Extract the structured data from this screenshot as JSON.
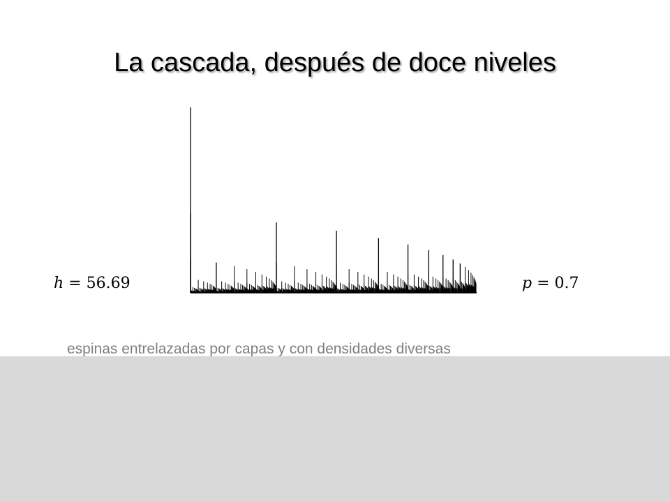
{
  "slide": {
    "title": "La cascada, después de doce niveles",
    "subtitle": "espinas entrelazadas por capas y con densidades diversas"
  },
  "formula_h": {
    "var": "h",
    "eq": " = ",
    "value": "56.69"
  },
  "formula_p": {
    "var": "p",
    "eq": " = ",
    "value": "0.7"
  },
  "cascade": {
    "levels": 12,
    "p": 0.7,
    "h": 56.69,
    "stroke_color": "#000000"
  },
  "colors": {
    "background": "#ffffff",
    "subtitle_text": "#7f7f7f",
    "bottom_panel": "#d9d9d9"
  }
}
